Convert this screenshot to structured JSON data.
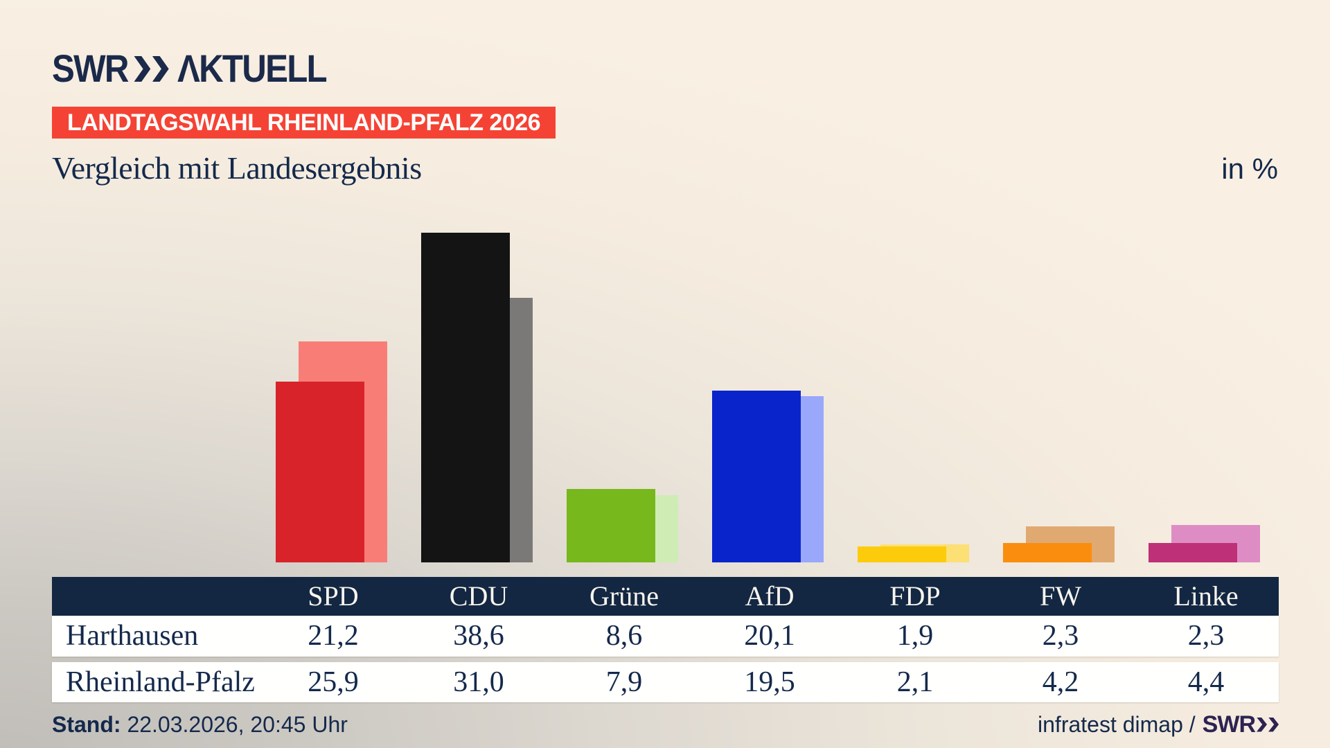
{
  "header": {
    "logo": {
      "brand": "SWR",
      "suffix": "ΛKTUELL"
    },
    "badge": "LANDTAGSWAHL RHEINLAND-PFALZ 2026",
    "title": "Vergleich mit Landesergebnis",
    "unit_label": "in %"
  },
  "chart_data": {
    "type": "bar",
    "categories": [
      "SPD",
      "CDU",
      "Grüne",
      "AfD",
      "FDP",
      "FW",
      "Linke"
    ],
    "series": [
      {
        "name": "Harthausen",
        "values": [
          21.2,
          38.6,
          8.6,
          20.1,
          1.9,
          2.3,
          2.3
        ]
      },
      {
        "name": "Rheinland-Pfalz",
        "values": [
          25.9,
          31.0,
          7.9,
          19.5,
          2.1,
          4.2,
          4.4
        ]
      }
    ],
    "party_colors": [
      {
        "party": "SPD",
        "main": "#d8232a",
        "compare": "#f97d77"
      },
      {
        "party": "CDU",
        "main": "#141414",
        "compare": "#7b7977"
      },
      {
        "party": "Grüne",
        "main": "#77b81c",
        "compare": "#cfecb4"
      },
      {
        "party": "AfD",
        "main": "#0a24cc",
        "compare": "#99a8fa"
      },
      {
        "party": "FDP",
        "main": "#fccc0c",
        "compare": "#fcdf75"
      },
      {
        "party": "FW",
        "main": "#fb8d0e",
        "compare": "#e0a972"
      },
      {
        "party": "Linke",
        "main": "#be3077",
        "compare": "#de8dc4"
      }
    ],
    "title": "Vergleich mit Landesergebnis",
    "xlabel": "",
    "ylabel": "in %",
    "ylim": [
      0,
      40
    ],
    "grid": false,
    "legend": "none",
    "note": "main series (Harthausen) drawn in front, compare series (Rheinland-Pfalz) behind, offset right"
  },
  "table": {
    "columns": [
      "SPD",
      "CDU",
      "Grüne",
      "AfD",
      "FDP",
      "FW",
      "Linke"
    ],
    "rows": [
      {
        "label": "Harthausen",
        "values": [
          "21,2",
          "38,6",
          "8,6",
          "20,1",
          "1,9",
          "2,3",
          "2,3"
        ]
      },
      {
        "label": "Rheinland-Pfalz",
        "values": [
          "25,9",
          "31,0",
          "7,9",
          "19,5",
          "2,1",
          "4,2",
          "4,4"
        ]
      }
    ],
    "header_bg": "#132742",
    "row_bg": "#ffffff"
  },
  "footer": {
    "stand_label": "Stand:",
    "stand_value": "22.03.2026, 20:45 Uhr",
    "source_text": "infratest dimap /",
    "source_brand": "SWR"
  },
  "colors": {
    "navy_text": "#14294b",
    "logo_navy": "#1b2a4a",
    "badge_red": "#f44334",
    "brand_purple": "#2d2352",
    "background_cream": "#f9f0e3",
    "background_gray": "#c1beb9"
  }
}
